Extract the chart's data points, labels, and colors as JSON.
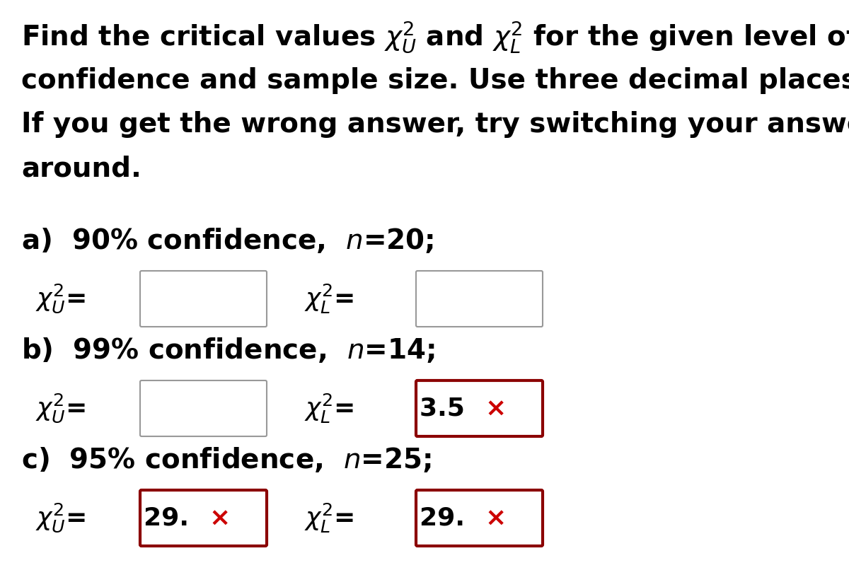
{
  "bg_color": "#ffffff",
  "text_color": "#000000",
  "empty_box_border": "#999999",
  "red_box_border": "#8b0000",
  "red_x_color": "#cc0000",
  "font_size_header": 28,
  "font_size_part": 28,
  "font_size_label": 26,
  "font_size_box_content": 26,
  "header_lines": [
    "Find the critical values $\\chi_U^2$ and $\\chi_L^2$ for the given level of",
    "confidence and sample size. Use three decimal places. Hint:",
    "If you get the wrong answer, try switching your answers",
    "around."
  ],
  "parts": [
    {
      "label": "a)  90% confidence,  $n$=20;",
      "xu_box": {
        "text": "",
        "red": false
      },
      "xl_box": {
        "text": "",
        "red": false
      }
    },
    {
      "label": "b)  99% confidence,  $n$=14;",
      "xu_box": {
        "text": "",
        "red": false
      },
      "xl_box": {
        "text": "3.5 ×",
        "red": true
      }
    },
    {
      "label": "c)  95% confidence,  $n$=25;",
      "xu_box": {
        "text": "29. ×",
        "red": true
      },
      "xl_box": {
        "text": "29. ×",
        "red": true
      }
    }
  ]
}
